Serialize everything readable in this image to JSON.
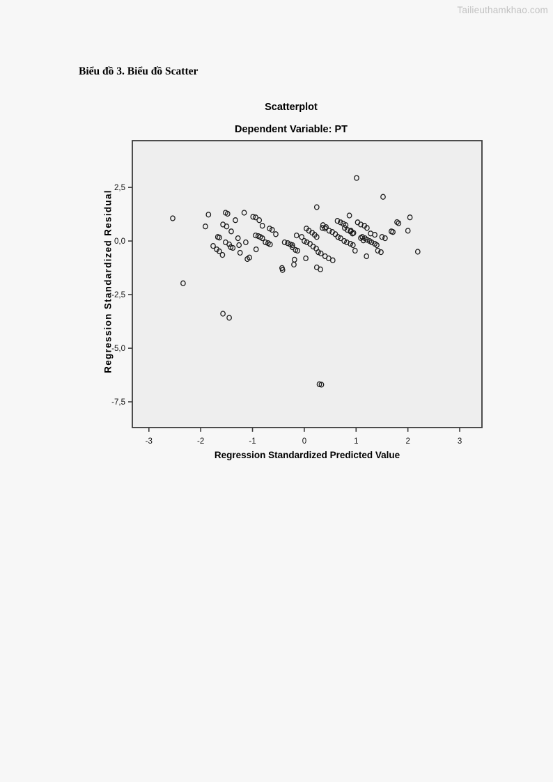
{
  "page": {
    "watermark": "Tailieuthamkhao.com",
    "heading": "Biểu đồ 3. Biểu đồ Scatter"
  },
  "colors": {
    "page_bg": "#f7f7f7",
    "plot_bg": "#eeeeee",
    "frame": "#3a3a3a",
    "marker": "#1c1c1c",
    "watermark": "#c2c2c2",
    "text": "#000000"
  },
  "chart_data": {
    "type": "scatter",
    "title": "Scatterplot",
    "subtitle": "Dependent Variable: PT",
    "xlabel": "Regression Standardized Predicted Value",
    "ylabel": "Regression Standardized Residual",
    "xlim": [
      -3.32,
      3.43
    ],
    "ylim": [
      -8.7,
      4.68
    ],
    "x_ticks": [
      -3,
      -2,
      -1,
      0,
      1,
      2,
      3
    ],
    "x_tick_labels": [
      "-3",
      "-2",
      "-1",
      "0",
      "1",
      "2",
      "3"
    ],
    "y_ticks": [
      2.5,
      0,
      -2.5,
      -5,
      -7.5
    ],
    "y_tick_labels": [
      "2,5",
      "0,0",
      "-2,5",
      "-5,0",
      "-7,5"
    ],
    "grid": false,
    "legend": null,
    "marker": "open-circle",
    "points": [
      [
        1.01,
        2.94
      ],
      [
        1.52,
        2.06
      ],
      [
        0.24,
        1.58
      ],
      [
        -2.54,
        1.06
      ],
      [
        -2.34,
        -1.97
      ],
      [
        -1.57,
        -3.39
      ],
      [
        -1.45,
        -3.58
      ],
      [
        0.29,
        -6.68
      ],
      [
        0.33,
        -6.7
      ],
      [
        2.04,
        1.1
      ],
      [
        2.0,
        0.48
      ],
      [
        2.19,
        -0.5
      ],
      [
        1.79,
        0.88
      ],
      [
        1.82,
        0.83
      ],
      [
        1.68,
        0.45
      ],
      [
        1.71,
        0.42
      ],
      [
        -1.85,
        1.23
      ],
      [
        -1.52,
        1.32
      ],
      [
        -1.48,
        1.27
      ],
      [
        -1.16,
        1.32
      ],
      [
        -1.91,
        0.68
      ],
      [
        -1.57,
        0.77
      ],
      [
        -1.5,
        0.68
      ],
      [
        -1.41,
        0.45
      ],
      [
        -1.33,
        0.97
      ],
      [
        -1.67,
        0.19
      ],
      [
        -1.64,
        0.16
      ],
      [
        -1.52,
        -0.06
      ],
      [
        -1.45,
        -0.16
      ],
      [
        -1.42,
        -0.29
      ],
      [
        -1.38,
        -0.32
      ],
      [
        -1.76,
        -0.23
      ],
      [
        -1.69,
        -0.39
      ],
      [
        -1.64,
        -0.48
      ],
      [
        -1.58,
        -0.65
      ],
      [
        -1.28,
        0.13
      ],
      [
        -1.26,
        -0.19
      ],
      [
        -1.24,
        -0.55
      ],
      [
        -1.13,
        -0.06
      ],
      [
        -1.1,
        -0.84
      ],
      [
        -0.99,
        1.13
      ],
      [
        -0.94,
        1.1
      ],
      [
        -0.87,
        0.97
      ],
      [
        -0.81,
        0.71
      ],
      [
        -0.67,
        0.58
      ],
      [
        -0.62,
        0.52
      ],
      [
        -0.55,
        0.32
      ],
      [
        -0.94,
        0.26
      ],
      [
        -0.89,
        0.23
      ],
      [
        -0.85,
        0.19
      ],
      [
        -0.81,
        0.13
      ],
      [
        -0.75,
        -0.06
      ],
      [
        -0.7,
        -0.1
      ],
      [
        -0.66,
        -0.16
      ],
      [
        -0.38,
        -0.06
      ],
      [
        -0.32,
        -0.1
      ],
      [
        -0.27,
        -0.16
      ],
      [
        -0.23,
        -0.19
      ],
      [
        -0.93,
        -0.39
      ],
      [
        -1.06,
        -0.77
      ],
      [
        -0.43,
        -1.26
      ],
      [
        -0.15,
        0.26
      ],
      [
        -0.05,
        0.19
      ],
      [
        -0.23,
        -0.29
      ],
      [
        -0.17,
        -0.42
      ],
      [
        -0.13,
        -0.45
      ],
      [
        -0.19,
        -0.87
      ],
      [
        -0.42,
        -1.35
      ],
      [
        -0.2,
        -1.1
      ],
      [
        0.04,
        0.58
      ],
      [
        0.09,
        0.48
      ],
      [
        0.15,
        0.39
      ],
      [
        0.2,
        0.29
      ],
      [
        0.24,
        0.19
      ],
      [
        0.35,
        0.61
      ],
      [
        0.4,
        0.58
      ],
      [
        0.36,
        0.74
      ],
      [
        0.42,
        0.65
      ],
      [
        0.48,
        0.48
      ],
      [
        0.54,
        0.42
      ],
      [
        0.6,
        0.32
      ],
      [
        0.65,
        0.19
      ],
      [
        0.7,
        0.13
      ],
      [
        0.0,
        0.0
      ],
      [
        0.05,
        -0.06
      ],
      [
        0.11,
        -0.13
      ],
      [
        0.17,
        -0.26
      ],
      [
        0.23,
        -0.35
      ],
      [
        0.27,
        -0.52
      ],
      [
        0.32,
        -0.58
      ],
      [
        0.4,
        -0.71
      ],
      [
        0.47,
        -0.81
      ],
      [
        0.03,
        -0.81
      ],
      [
        0.24,
        -1.23
      ],
      [
        0.31,
        -1.32
      ],
      [
        0.55,
        -0.9
      ],
      [
        0.87,
        1.19
      ],
      [
        0.64,
        0.94
      ],
      [
        0.7,
        0.87
      ],
      [
        0.75,
        0.81
      ],
      [
        0.8,
        0.74
      ],
      [
        0.78,
        0.61
      ],
      [
        0.83,
        0.52
      ],
      [
        0.89,
        0.45
      ],
      [
        0.93,
        0.35
      ],
      [
        1.03,
        0.87
      ],
      [
        1.09,
        0.77
      ],
      [
        1.16,
        0.71
      ],
      [
        1.21,
        0.61
      ],
      [
        1.28,
        0.35
      ],
      [
        1.36,
        0.29
      ],
      [
        0.9,
        0.48
      ],
      [
        0.95,
        0.38
      ],
      [
        0.77,
        0.0
      ],
      [
        0.82,
        -0.06
      ],
      [
        0.89,
        -0.13
      ],
      [
        0.94,
        -0.19
      ],
      [
        0.98,
        -0.45
      ],
      [
        1.2,
        -0.71
      ],
      [
        1.12,
        0.19
      ],
      [
        1.17,
        0.13
      ],
      [
        1.21,
        0.06
      ],
      [
        1.26,
        0.0
      ],
      [
        1.3,
        -0.06
      ],
      [
        1.36,
        -0.13
      ],
      [
        1.4,
        -0.19
      ],
      [
        1.09,
        0.14
      ],
      [
        1.14,
        0.03
      ],
      [
        1.42,
        -0.45
      ],
      [
        1.48,
        -0.52
      ],
      [
        1.5,
        0.19
      ],
      [
        1.56,
        0.13
      ]
    ]
  }
}
